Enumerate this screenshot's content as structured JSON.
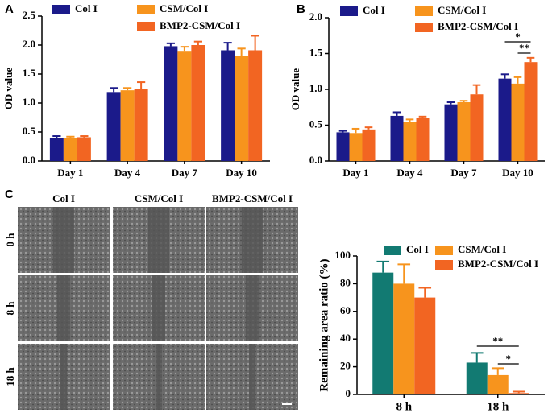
{
  "panels": [
    "A",
    "B",
    "C"
  ],
  "chart_data": [
    {
      "type": "bar",
      "ylabel": "OD value",
      "categories": [
        "Day 1",
        "Day 4",
        "Day 7",
        "Day 10"
      ],
      "series": [
        {
          "name": "Col I",
          "color": "#1b1a8a",
          "values": [
            0.39,
            1.19,
            1.98,
            1.91
          ],
          "errors": [
            0.04,
            0.07,
            0.05,
            0.13
          ]
        },
        {
          "name": "CSM/Col I",
          "color": "#f7941d",
          "values": [
            0.4,
            1.22,
            1.9,
            1.81
          ],
          "errors": [
            0.02,
            0.04,
            0.07,
            0.13
          ]
        },
        {
          "name": "BMP2-CSM/Col I",
          "color": "#f26522",
          "values": [
            0.41,
            1.25,
            2.0,
            1.91
          ],
          "errors": [
            0.02,
            0.11,
            0.06,
            0.25
          ]
        }
      ],
      "ylim": [
        0,
        2.5
      ],
      "yticks": [
        {
          "value": 0,
          "label": "0.0"
        },
        0.5,
        {
          "value": 1,
          "label": "1.0"
        },
        1.5,
        {
          "value": 2,
          "label": "2.0"
        },
        2.5
      ]
    },
    {
      "type": "bar",
      "ylabel": "OD value",
      "categories": [
        "Day 1",
        "Day 4",
        "Day 7",
        "Day 10"
      ],
      "series": [
        {
          "name": "Col I",
          "color": "#1b1a8a",
          "values": [
            0.4,
            0.63,
            0.79,
            1.15
          ],
          "errors": [
            0.02,
            0.05,
            0.03,
            0.06
          ]
        },
        {
          "name": "CSM/Col I",
          "color": "#f7941d",
          "values": [
            0.39,
            0.54,
            0.82,
            1.08
          ],
          "errors": [
            0.06,
            0.04,
            0.02,
            0.09
          ]
        },
        {
          "name": "BMP2-CSM/Col I",
          "color": "#f26522",
          "values": [
            0.44,
            0.6,
            0.93,
            1.38
          ],
          "errors": [
            0.03,
            0.02,
            0.13,
            0.06
          ]
        }
      ],
      "ylim": [
        0,
        2
      ],
      "yticks": [
        {
          "value": 0,
          "label": "0.0"
        },
        0.5,
        {
          "value": 1,
          "label": "1.0"
        },
        1.5,
        {
          "value": 2,
          "label": "2.0"
        }
      ],
      "annotations": [
        "*",
        "**"
      ]
    },
    {
      "type": "bar",
      "ylabel": "Remaining area ratio (%)",
      "categories": [
        "8 h",
        "18 h"
      ],
      "series": [
        {
          "name": "Col I",
          "color": "#127a72",
          "values": [
            88,
            23
          ],
          "errors": [
            8,
            7
          ]
        },
        {
          "name": "CSM/Col I",
          "color": "#f7941d",
          "values": [
            80,
            14
          ],
          "errors": [
            14,
            5
          ]
        },
        {
          "name": "BMP2-CSM/Col I",
          "color": "#f26522",
          "values": [
            70,
            1
          ],
          "errors": [
            7,
            1
          ]
        }
      ],
      "ylim": [
        0,
        100
      ],
      "yticks": [
        0,
        20,
        40,
        60,
        80,
        100
      ],
      "annotations": [
        "**",
        "*"
      ]
    }
  ],
  "micrographs": {
    "columns": [
      "Col I",
      "CSM/Col I",
      "BMP2-CSM/Col I"
    ],
    "rows": [
      "0 h",
      "8 h",
      "18 h"
    ]
  }
}
